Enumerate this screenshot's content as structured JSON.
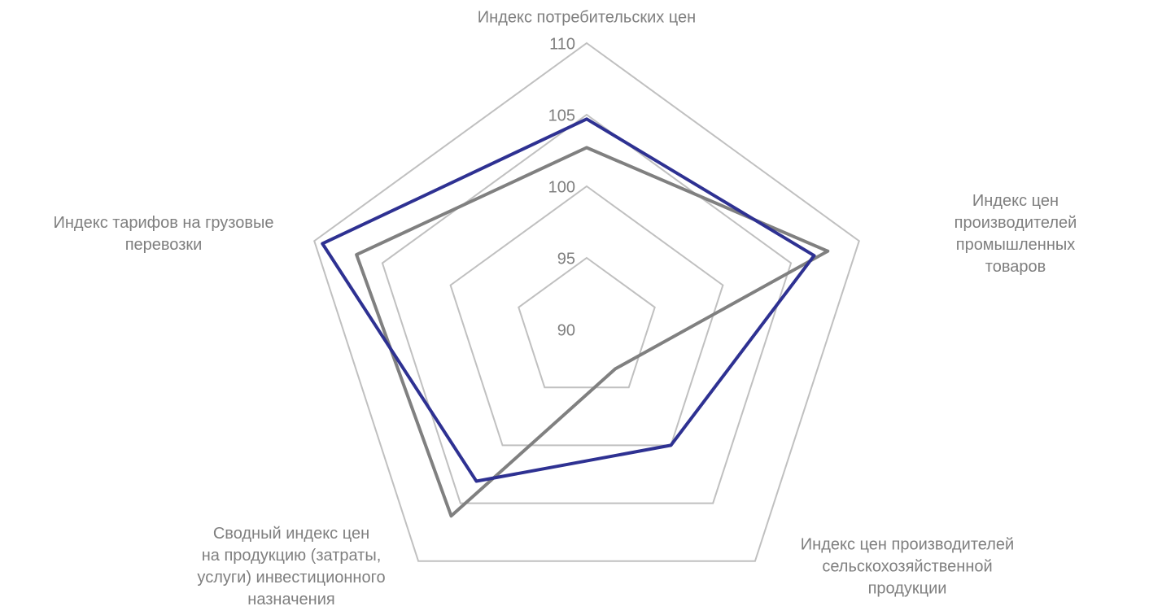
{
  "chart_data": {
    "type": "radar",
    "categories": [
      "Индекс потребительских цен",
      "Индекс цен производителей\nпромышленных товаров",
      "Индекс цен производителей\nсельскохозяйственной\nпродукции",
      "Сводный индекс цен\nна продукцию (затраты,\nуслуги) инвестиционного\nназначения",
      "Индекс тарифов на грузовые\nперевозки"
    ],
    "series": [
      {
        "color": "#808080",
        "values": [
          102.7,
          107.7,
          93.4,
          106.1,
          106.9
        ]
      },
      {
        "color": "#2e3192",
        "values": [
          104.7,
          106.7,
          100.0,
          103.1,
          109.4
        ]
      }
    ],
    "ylim": [
      90,
      110
    ],
    "yticks": [
      90,
      95,
      100,
      105,
      110
    ],
    "grid": true
  }
}
